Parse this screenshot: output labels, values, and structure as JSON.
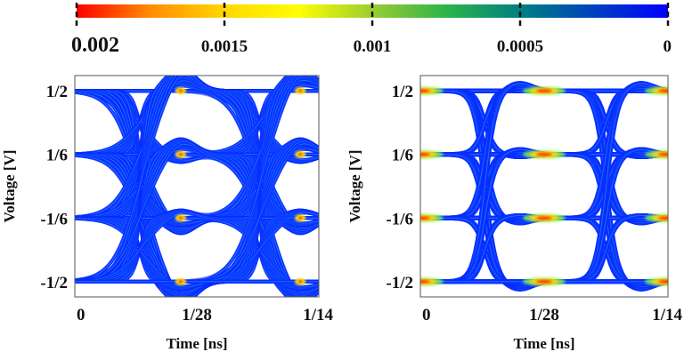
{
  "chart_data": {
    "type": "heatmap",
    "colorbar": {
      "ticks": [
        "0.002",
        "0.0015",
        "0.001",
        "0.0005",
        "0"
      ],
      "tick_values": [
        0.002,
        0.0015,
        0.001,
        0.0005,
        0
      ],
      "range": [
        0.002,
        0
      ],
      "colors": [
        "#ff0000",
        "#ff8c00",
        "#ffd700",
        "#ffff00",
        "#9acd32",
        "#2db34a",
        "#008080",
        "#0040c0",
        "#0000ff"
      ]
    },
    "plots": [
      {
        "name": "left-eye-diagram",
        "xlabel": "Time [ns]",
        "ylabel": "Voltage [V]",
        "xticks": [
          "0",
          "1/28",
          "1/14"
        ],
        "xtick_values": [
          0,
          0.035714,
          0.071429
        ],
        "yticks": [
          "1/2",
          "1/6",
          "-1/6",
          "-1/2"
        ],
        "ytick_values": [
          0.5,
          0.1667,
          -0.1667,
          -0.5
        ],
        "xlim": [
          0,
          0.071429
        ],
        "ylim": [
          -0.58,
          0.58
        ],
        "levels": [
          0.5,
          0.1667,
          -0.1667,
          -0.5
        ],
        "transition_centers_ns": [
          0.019,
          0.054
        ],
        "hotspot_times_ns": [
          0.031,
          0.066
        ],
        "style": "dispersive"
      },
      {
        "name": "right-eye-diagram",
        "xlabel": "Time [ns]",
        "ylabel": "Voltage [V]",
        "xticks": [
          "0",
          "1/28",
          "1/14"
        ],
        "xtick_values": [
          0,
          0.035714,
          0.071429
        ],
        "yticks": [
          "1/2",
          "1/6",
          "-1/6",
          "-1/2"
        ],
        "ytick_values": [
          0.5,
          0.1667,
          -0.1667,
          -0.5
        ],
        "xlim": [
          0,
          0.071429
        ],
        "ylim": [
          -0.58,
          0.58
        ],
        "levels": [
          0.5,
          0.1667,
          -0.1667,
          -0.5
        ],
        "transition_centers_ns": [
          0.0186,
          0.0536
        ],
        "hotspot_times_ns": [
          0.0005,
          0.0357,
          0.0709
        ],
        "style": "clean"
      }
    ]
  }
}
